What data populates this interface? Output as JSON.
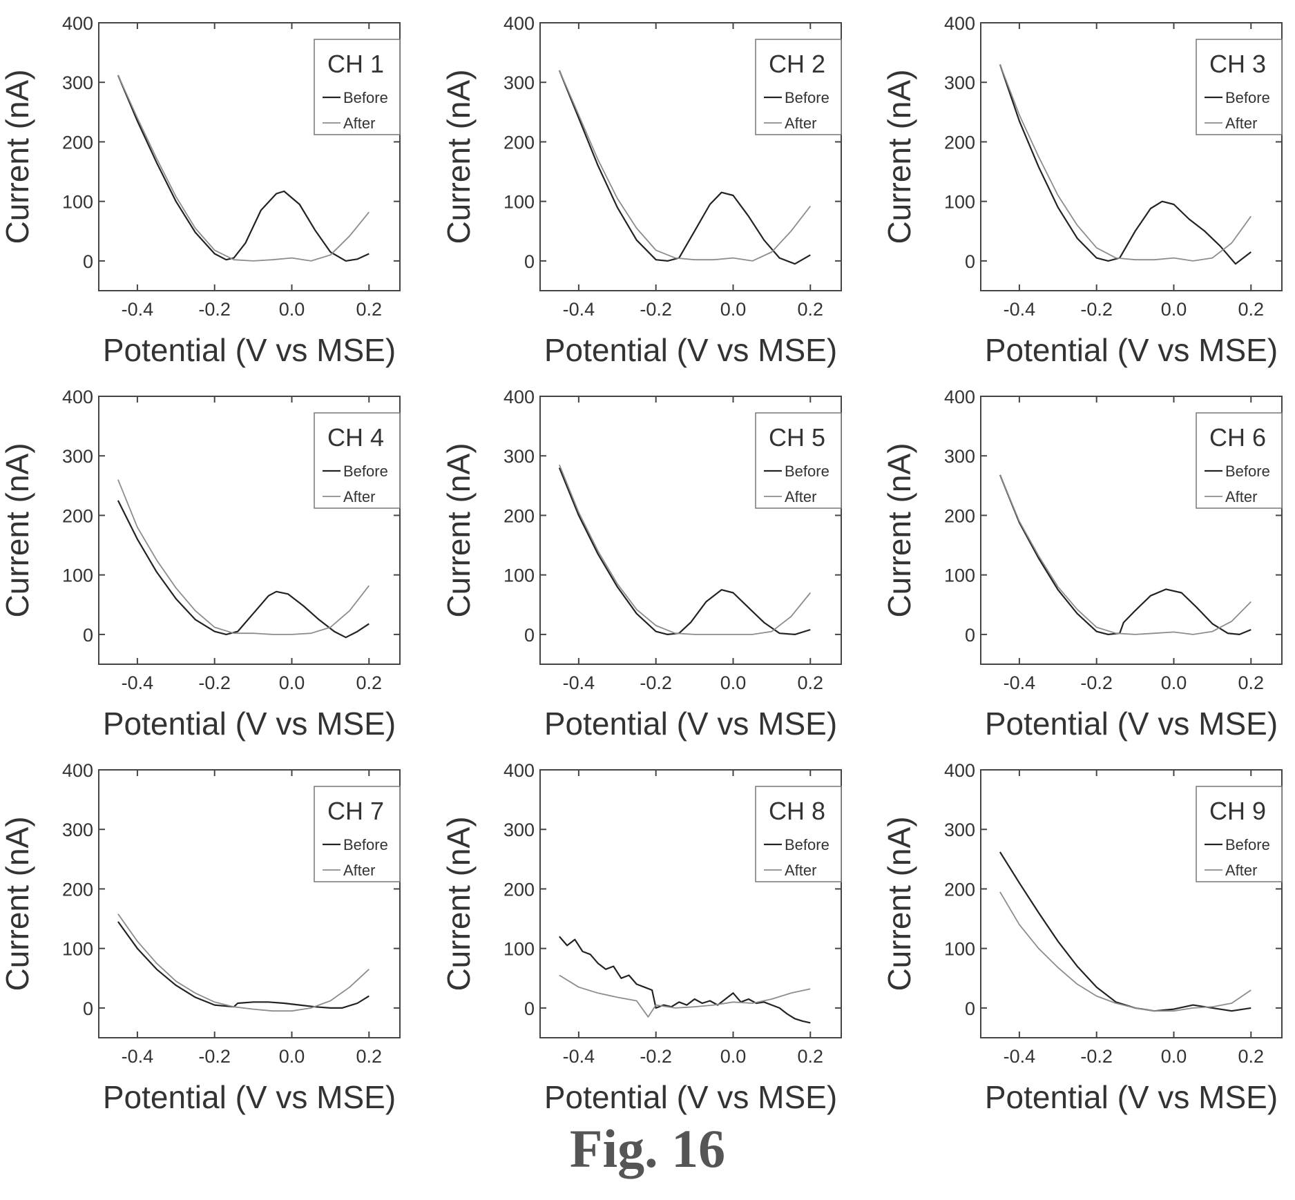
{
  "figure_caption": "Fig. 16",
  "colors": {
    "before": "#222222",
    "after": "#8c8c8c",
    "axis": "#444444",
    "text": "#333333"
  },
  "chart_data": [
    {
      "type": "line",
      "title": "CH 1",
      "xlabel": "Potential (V vs MSE)",
      "ylabel": "Current (nA)",
      "xlim": [
        -0.5,
        0.28
      ],
      "ylim": [
        -50,
        400
      ],
      "xticks": [
        -0.4,
        -0.2,
        0.0,
        0.2
      ],
      "xtick_labels": [
        "-0.4",
        "-0.2",
        "0.0",
        "0.2"
      ],
      "yticks": [
        0,
        100,
        200,
        300,
        400
      ],
      "ytick_labels": [
        "0",
        "100",
        "200",
        "300",
        "400"
      ],
      "legend": {
        "position": "top-right"
      },
      "series": [
        {
          "name": "Before",
          "x": [
            -0.45,
            -0.4,
            -0.35,
            -0.3,
            -0.25,
            -0.2,
            -0.17,
            -0.15,
            -0.12,
            -0.08,
            -0.04,
            -0.02,
            0.02,
            0.06,
            0.1,
            0.14,
            0.17,
            0.2
          ],
          "y": [
            312,
            235,
            165,
            100,
            48,
            12,
            2,
            5,
            30,
            85,
            113,
            117,
            95,
            52,
            15,
            0,
            3,
            12
          ]
        },
        {
          "name": "After",
          "x": [
            -0.45,
            -0.4,
            -0.35,
            -0.3,
            -0.25,
            -0.2,
            -0.15,
            -0.1,
            -0.05,
            0.0,
            0.05,
            0.1,
            0.15,
            0.2
          ],
          "y": [
            312,
            240,
            172,
            108,
            55,
            18,
            2,
            0,
            2,
            5,
            0,
            10,
            42,
            82
          ]
        }
      ]
    },
    {
      "type": "line",
      "title": "CH 2",
      "xlabel": "Potential (V vs MSE)",
      "ylabel": "Current (nA)",
      "xlim": [
        -0.5,
        0.28
      ],
      "ylim": [
        -50,
        400
      ],
      "xticks": [
        -0.4,
        -0.2,
        0.0,
        0.2
      ],
      "xtick_labels": [
        "-0.4",
        "-0.2",
        "0.0",
        "0.2"
      ],
      "yticks": [
        0,
        100,
        200,
        300,
        400
      ],
      "ytick_labels": [
        "0",
        "100",
        "200",
        "300",
        "400"
      ],
      "legend": {
        "position": "top-right"
      },
      "series": [
        {
          "name": "Before",
          "x": [
            -0.45,
            -0.4,
            -0.35,
            -0.3,
            -0.25,
            -0.2,
            -0.17,
            -0.14,
            -0.1,
            -0.06,
            -0.03,
            0.0,
            0.04,
            0.08,
            0.12,
            0.16,
            0.2
          ],
          "y": [
            320,
            240,
            160,
            90,
            35,
            2,
            0,
            5,
            50,
            95,
            115,
            110,
            75,
            35,
            5,
            -5,
            10
          ]
        },
        {
          "name": "After",
          "x": [
            -0.45,
            -0.4,
            -0.35,
            -0.3,
            -0.25,
            -0.2,
            -0.15,
            -0.1,
            -0.05,
            0.0,
            0.05,
            0.1,
            0.15,
            0.2
          ],
          "y": [
            320,
            245,
            170,
            105,
            55,
            18,
            5,
            2,
            2,
            5,
            0,
            15,
            50,
            92
          ]
        }
      ]
    },
    {
      "type": "line",
      "title": "CH 3",
      "xlabel": "Potential (V vs MSE)",
      "ylabel": "Current (nA)",
      "xlim": [
        -0.5,
        0.28
      ],
      "ylim": [
        -50,
        400
      ],
      "xticks": [
        -0.4,
        -0.2,
        0.0,
        0.2
      ],
      "xtick_labels": [
        "-0.4",
        "-0.2",
        "0.0",
        "0.2"
      ],
      "yticks": [
        0,
        100,
        200,
        300,
        400
      ],
      "ytick_labels": [
        "0",
        "100",
        "200",
        "300",
        "400"
      ],
      "legend": {
        "position": "top-right"
      },
      "series": [
        {
          "name": "Before",
          "x": [
            -0.45,
            -0.4,
            -0.35,
            -0.3,
            -0.25,
            -0.2,
            -0.17,
            -0.14,
            -0.1,
            -0.06,
            -0.03,
            0.0,
            0.04,
            0.08,
            0.12,
            0.16,
            0.2
          ],
          "y": [
            330,
            235,
            158,
            90,
            38,
            5,
            0,
            5,
            50,
            88,
            100,
            95,
            70,
            50,
            25,
            -5,
            15
          ]
        },
        {
          "name": "After",
          "x": [
            -0.45,
            -0.4,
            -0.35,
            -0.3,
            -0.25,
            -0.2,
            -0.15,
            -0.1,
            -0.05,
            0.0,
            0.05,
            0.1,
            0.15,
            0.2
          ],
          "y": [
            330,
            245,
            175,
            110,
            60,
            22,
            5,
            2,
            2,
            5,
            0,
            5,
            30,
            75
          ]
        }
      ]
    },
    {
      "type": "line",
      "title": "CH 4",
      "xlabel": "Potential (V vs MSE)",
      "ylabel": "Current (nA)",
      "xlim": [
        -0.5,
        0.28
      ],
      "ylim": [
        -50,
        400
      ],
      "xticks": [
        -0.4,
        -0.2,
        0.0,
        0.2
      ],
      "xtick_labels": [
        "-0.4",
        "-0.2",
        "0.0",
        "0.2"
      ],
      "yticks": [
        0,
        100,
        200,
        300,
        400
      ],
      "ytick_labels": [
        "0",
        "100",
        "200",
        "300",
        "400"
      ],
      "legend": {
        "position": "top-right"
      },
      "series": [
        {
          "name": "Before",
          "x": [
            -0.45,
            -0.4,
            -0.35,
            -0.3,
            -0.25,
            -0.2,
            -0.17,
            -0.14,
            -0.1,
            -0.06,
            -0.04,
            -0.01,
            0.03,
            0.07,
            0.11,
            0.14,
            0.17,
            0.2
          ],
          "y": [
            225,
            160,
            105,
            60,
            25,
            5,
            0,
            5,
            35,
            65,
            72,
            68,
            48,
            25,
            5,
            -5,
            5,
            18
          ]
        },
        {
          "name": "After",
          "x": [
            -0.45,
            -0.4,
            -0.35,
            -0.3,
            -0.25,
            -0.2,
            -0.15,
            -0.1,
            -0.05,
            0.0,
            0.05,
            0.1,
            0.15,
            0.2
          ],
          "y": [
            260,
            180,
            125,
            78,
            40,
            12,
            2,
            2,
            0,
            0,
            2,
            12,
            40,
            82
          ]
        }
      ]
    },
    {
      "type": "line",
      "title": "CH 5",
      "xlabel": "Potential (V vs MSE)",
      "ylabel": "Current (nA)",
      "xlim": [
        -0.5,
        0.28
      ],
      "ylim": [
        -50,
        400
      ],
      "xticks": [
        -0.4,
        -0.2,
        0.0,
        0.2
      ],
      "xtick_labels": [
        "-0.4",
        "-0.2",
        "0.0",
        "0.2"
      ],
      "yticks": [
        0,
        100,
        200,
        300,
        400
      ],
      "ytick_labels": [
        "0",
        "100",
        "200",
        "300",
        "400"
      ],
      "legend": {
        "position": "top-right"
      },
      "series": [
        {
          "name": "Before",
          "x": [
            -0.45,
            -0.4,
            -0.35,
            -0.3,
            -0.25,
            -0.2,
            -0.17,
            -0.14,
            -0.11,
            -0.07,
            -0.03,
            0.0,
            0.04,
            0.08,
            0.12,
            0.16,
            0.2
          ],
          "y": [
            280,
            200,
            135,
            80,
            35,
            5,
            0,
            2,
            20,
            55,
            75,
            70,
            45,
            20,
            2,
            0,
            8
          ]
        },
        {
          "name": "After",
          "x": [
            -0.45,
            -0.4,
            -0.35,
            -0.3,
            -0.25,
            -0.2,
            -0.15,
            -0.1,
            -0.05,
            0.0,
            0.05,
            0.1,
            0.15,
            0.2
          ],
          "y": [
            285,
            205,
            140,
            85,
            42,
            15,
            2,
            0,
            0,
            0,
            0,
            5,
            30,
            70
          ]
        }
      ]
    },
    {
      "type": "line",
      "title": "CH 6",
      "xlabel": "Potential (V vs MSE)",
      "ylabel": "Current (nA)",
      "xlim": [
        -0.5,
        0.28
      ],
      "ylim": [
        -50,
        400
      ],
      "xticks": [
        -0.4,
        -0.2,
        0.0,
        0.2
      ],
      "xtick_labels": [
        "-0.4",
        "-0.2",
        "0.0",
        "0.2"
      ],
      "yticks": [
        0,
        100,
        200,
        300,
        400
      ],
      "ytick_labels": [
        "0",
        "100",
        "200",
        "300",
        "400"
      ],
      "legend": {
        "position": "top-right"
      },
      "series": [
        {
          "name": "Before",
          "x": [
            -0.45,
            -0.4,
            -0.35,
            -0.3,
            -0.25,
            -0.2,
            -0.17,
            -0.14,
            -0.13,
            -0.1,
            -0.06,
            -0.02,
            0.02,
            0.06,
            0.1,
            0.14,
            0.17,
            0.2
          ],
          "y": [
            268,
            188,
            128,
            75,
            35,
            5,
            0,
            2,
            20,
            40,
            65,
            76,
            70,
            45,
            18,
            2,
            0,
            8
          ]
        },
        {
          "name": "After",
          "x": [
            -0.45,
            -0.4,
            -0.35,
            -0.3,
            -0.25,
            -0.2,
            -0.15,
            -0.1,
            -0.05,
            0.0,
            0.05,
            0.1,
            0.15,
            0.2
          ],
          "y": [
            268,
            190,
            132,
            80,
            42,
            12,
            2,
            0,
            2,
            4,
            0,
            5,
            22,
            55
          ]
        }
      ]
    },
    {
      "type": "line",
      "title": "CH 7",
      "xlabel": "Potential (V vs MSE)",
      "ylabel": "Current (nA)",
      "xlim": [
        -0.5,
        0.28
      ],
      "ylim": [
        -50,
        400
      ],
      "xticks": [
        -0.4,
        -0.2,
        0.0,
        0.2
      ],
      "xtick_labels": [
        "-0.4",
        "-0.2",
        "0.0",
        "0.2"
      ],
      "yticks": [
        0,
        100,
        200,
        300,
        400
      ],
      "ytick_labels": [
        "0",
        "100",
        "200",
        "300",
        "400"
      ],
      "legend": {
        "position": "top-right"
      },
      "series": [
        {
          "name": "Before",
          "x": [
            -0.45,
            -0.4,
            -0.35,
            -0.3,
            -0.25,
            -0.2,
            -0.15,
            -0.14,
            -0.1,
            -0.06,
            -0.02,
            0.02,
            0.06,
            0.1,
            0.13,
            0.17,
            0.2
          ],
          "y": [
            145,
            100,
            65,
            38,
            18,
            5,
            2,
            8,
            10,
            10,
            8,
            5,
            2,
            0,
            0,
            8,
            20
          ]
        },
        {
          "name": "After",
          "x": [
            -0.45,
            -0.4,
            -0.35,
            -0.3,
            -0.25,
            -0.2,
            -0.15,
            -0.1,
            -0.05,
            0.0,
            0.05,
            0.1,
            0.15,
            0.2
          ],
          "y": [
            158,
            112,
            75,
            45,
            25,
            10,
            2,
            -2,
            -5,
            -5,
            0,
            12,
            35,
            65
          ]
        }
      ]
    },
    {
      "type": "line",
      "title": "CH 8",
      "xlabel": "Potential (V vs MSE)",
      "ylabel": "Current (nA)",
      "xlim": [
        -0.5,
        0.28
      ],
      "ylim": [
        -50,
        400
      ],
      "xticks": [
        -0.4,
        -0.2,
        0.0,
        0.2
      ],
      "xtick_labels": [
        "-0.4",
        "-0.2",
        "0.0",
        "0.2"
      ],
      "yticks": [
        0,
        100,
        200,
        300,
        400
      ],
      "ytick_labels": [
        "0",
        "100",
        "200",
        "300",
        "400"
      ],
      "legend": {
        "position": "top-right"
      },
      "series": [
        {
          "name": "Before",
          "x": [
            -0.45,
            -0.43,
            -0.41,
            -0.39,
            -0.37,
            -0.35,
            -0.33,
            -0.31,
            -0.29,
            -0.27,
            -0.25,
            -0.23,
            -0.21,
            -0.2,
            -0.18,
            -0.16,
            -0.14,
            -0.12,
            -0.1,
            -0.08,
            -0.06,
            -0.04,
            -0.02,
            0.0,
            0.02,
            0.04,
            0.06,
            0.08,
            0.1,
            0.12,
            0.14,
            0.16,
            0.18,
            0.2
          ],
          "y": [
            120,
            105,
            115,
            95,
            90,
            75,
            65,
            70,
            50,
            55,
            40,
            35,
            30,
            0,
            5,
            2,
            10,
            5,
            15,
            8,
            12,
            5,
            15,
            25,
            10,
            15,
            8,
            10,
            5,
            0,
            -10,
            -18,
            -22,
            -25
          ]
        },
        {
          "name": "After",
          "x": [
            -0.45,
            -0.4,
            -0.35,
            -0.3,
            -0.25,
            -0.22,
            -0.2,
            -0.15,
            -0.1,
            -0.05,
            0.0,
            0.05,
            0.1,
            0.15,
            0.2
          ],
          "y": [
            55,
            35,
            25,
            18,
            12,
            -15,
            5,
            0,
            2,
            5,
            10,
            8,
            15,
            25,
            32
          ]
        }
      ]
    },
    {
      "type": "line",
      "title": "CH 9",
      "xlabel": "Potential (V vs MSE)",
      "ylabel": "Current (nA)",
      "xlim": [
        -0.5,
        0.28
      ],
      "ylim": [
        -50,
        400
      ],
      "xticks": [
        -0.4,
        -0.2,
        0.0,
        0.2
      ],
      "xtick_labels": [
        "-0.4",
        "-0.2",
        "0.0",
        "0.2"
      ],
      "yticks": [
        0,
        100,
        200,
        300,
        400
      ],
      "ytick_labels": [
        "0",
        "100",
        "200",
        "300",
        "400"
      ],
      "legend": {
        "position": "top-right"
      },
      "series": [
        {
          "name": "Before",
          "x": [
            -0.45,
            -0.4,
            -0.35,
            -0.3,
            -0.25,
            -0.2,
            -0.15,
            -0.1,
            -0.05,
            0.0,
            0.05,
            0.1,
            0.15,
            0.2
          ],
          "y": [
            262,
            210,
            160,
            112,
            70,
            35,
            10,
            0,
            -5,
            -2,
            5,
            0,
            -5,
            0
          ]
        },
        {
          "name": "After",
          "x": [
            -0.45,
            -0.4,
            -0.35,
            -0.3,
            -0.25,
            -0.2,
            -0.15,
            -0.1,
            -0.05,
            0.0,
            0.05,
            0.1,
            0.15,
            0.2
          ],
          "y": [
            195,
            140,
            100,
            68,
            40,
            20,
            8,
            0,
            -5,
            -5,
            0,
            2,
            8,
            30
          ]
        }
      ]
    }
  ]
}
